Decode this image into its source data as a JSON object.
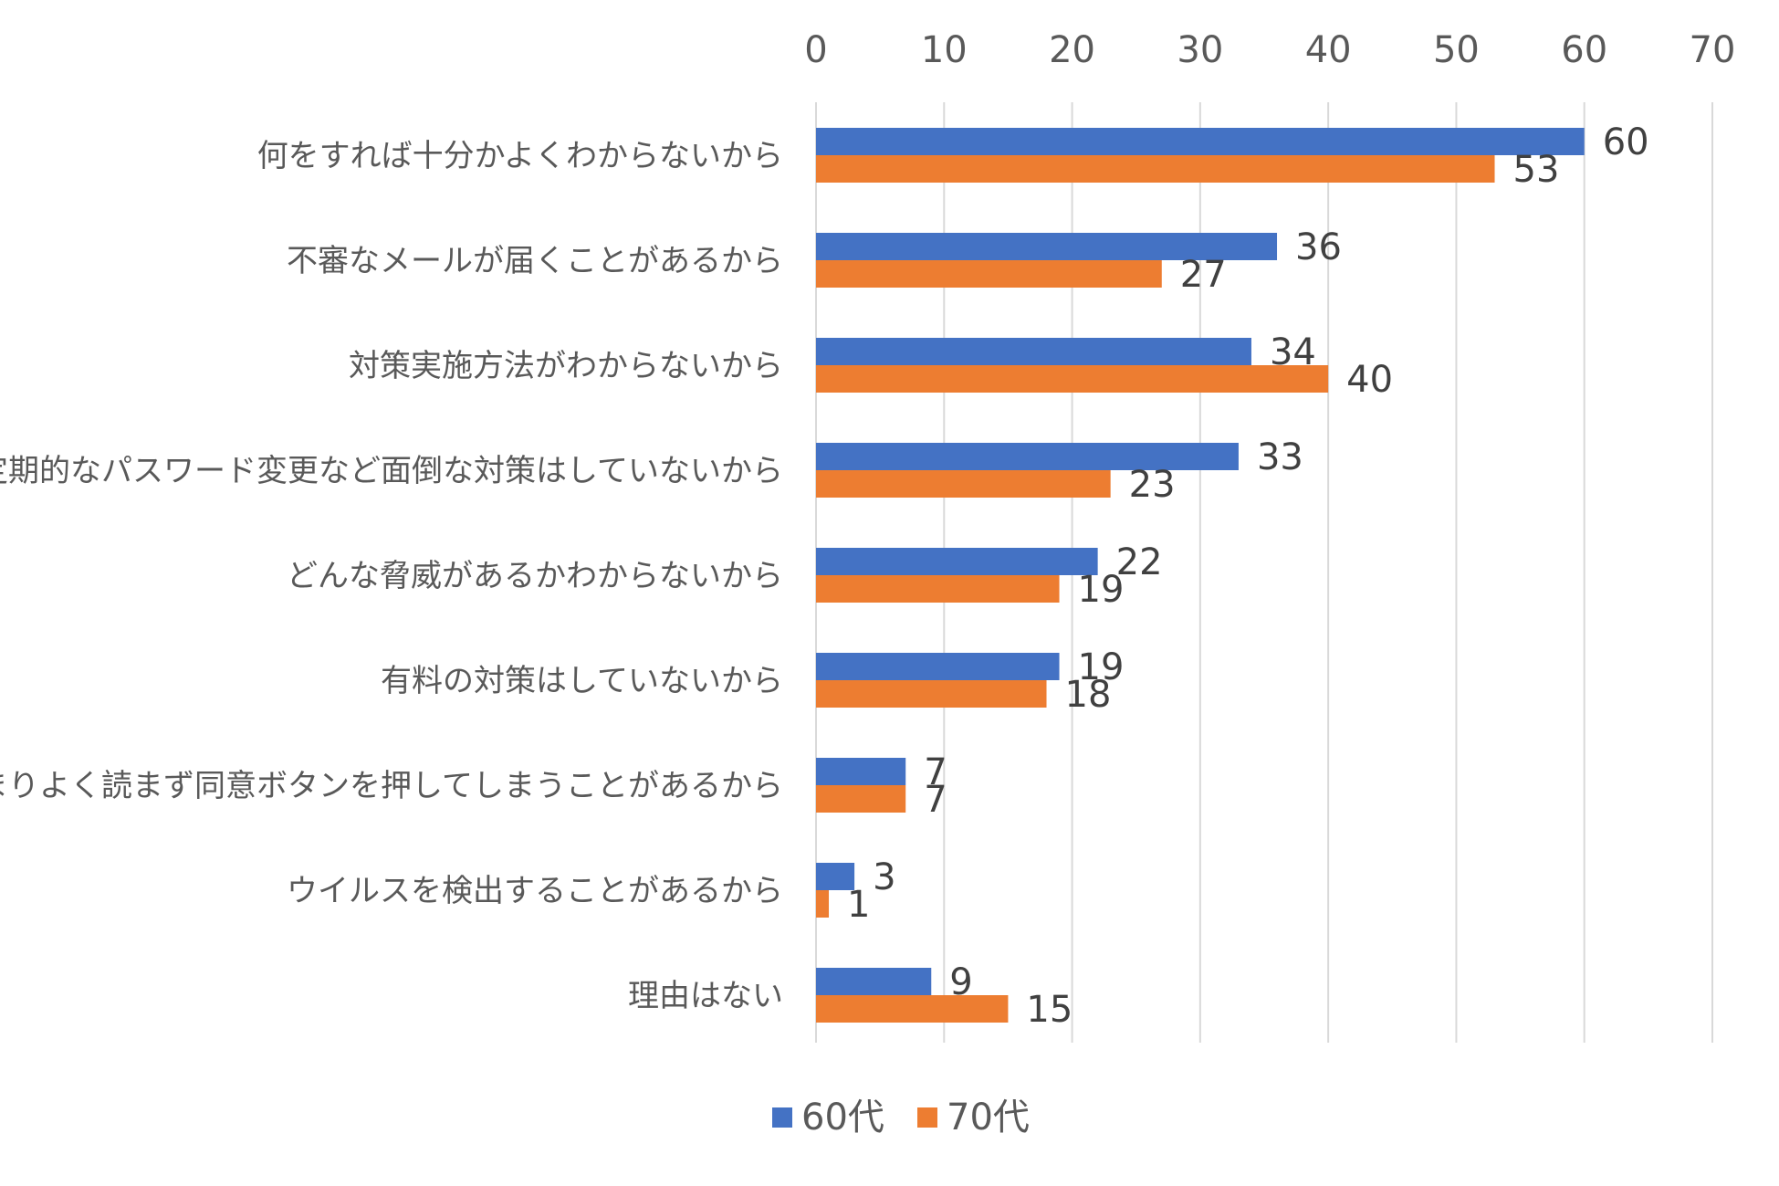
{
  "chart_data": {
    "type": "bar",
    "orientation": "horizontal",
    "title": "",
    "xlabel": "",
    "ylabel": "",
    "xlim": [
      0,
      70
    ],
    "x_ticks": [
      0,
      10,
      20,
      30,
      40,
      50,
      60,
      70
    ],
    "x_axis_position": "top",
    "grid": true,
    "legend_position": "bottom",
    "categories": [
      "何をすれば十分かよくわからないから",
      "不審なメールが届くことがあるから",
      "対策実施方法がわからないから",
      "定期的なパスワード変更など面倒な対策はしていないから",
      "どんな脅威があるかわからないから",
      "有料の対策はしていないから",
      "あまりよく読まず同意ボタンを押してしまうことがあるから",
      "ウイルスを検出することがあるから",
      "理由はない"
    ],
    "series": [
      {
        "name": "60代",
        "color": "#4472C4",
        "values": [
          60,
          36,
          34,
          33,
          22,
          19,
          7,
          3,
          9
        ]
      },
      {
        "name": "70代",
        "color": "#ED7D31",
        "values": [
          53,
          27,
          40,
          23,
          19,
          18,
          7,
          1,
          15
        ]
      }
    ]
  }
}
